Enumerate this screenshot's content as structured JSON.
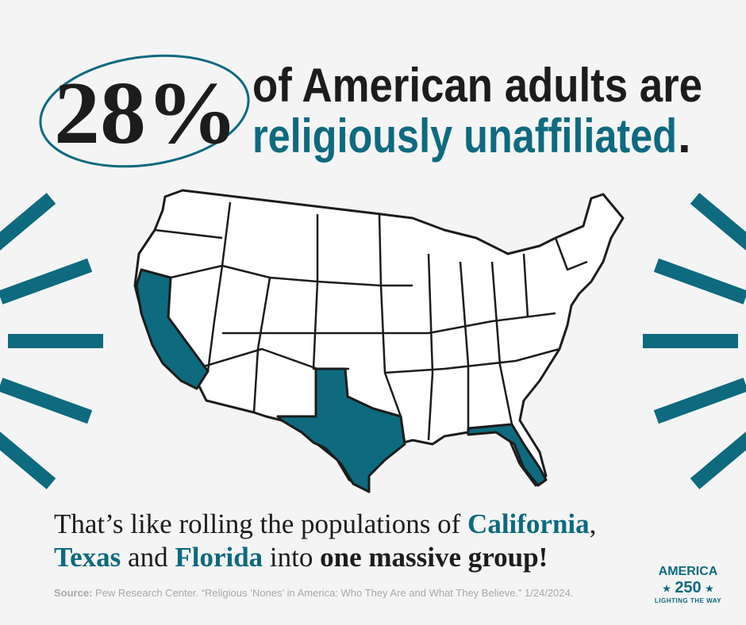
{
  "headline": {
    "stat": "28%",
    "line1": "of American adults are",
    "line2": "religiously unaffiliated",
    "period": "."
  },
  "body": {
    "intro": "That’s like rolling the populations of",
    "california": "California",
    "comma": ",",
    "texas": "Texas",
    "and": "and",
    "florida": "Florida",
    "into": "into",
    "emphasis": "one massive group!"
  },
  "source": {
    "label": "Source:",
    "text": "Pew Research Center. “Religious ‘Nones’ in America: Who They Are and What They Believe.” 1/24/2024."
  },
  "logo": {
    "name": "AMERICA",
    "number": "250",
    "tagline": "LIGHTING THE WAY"
  }
}
